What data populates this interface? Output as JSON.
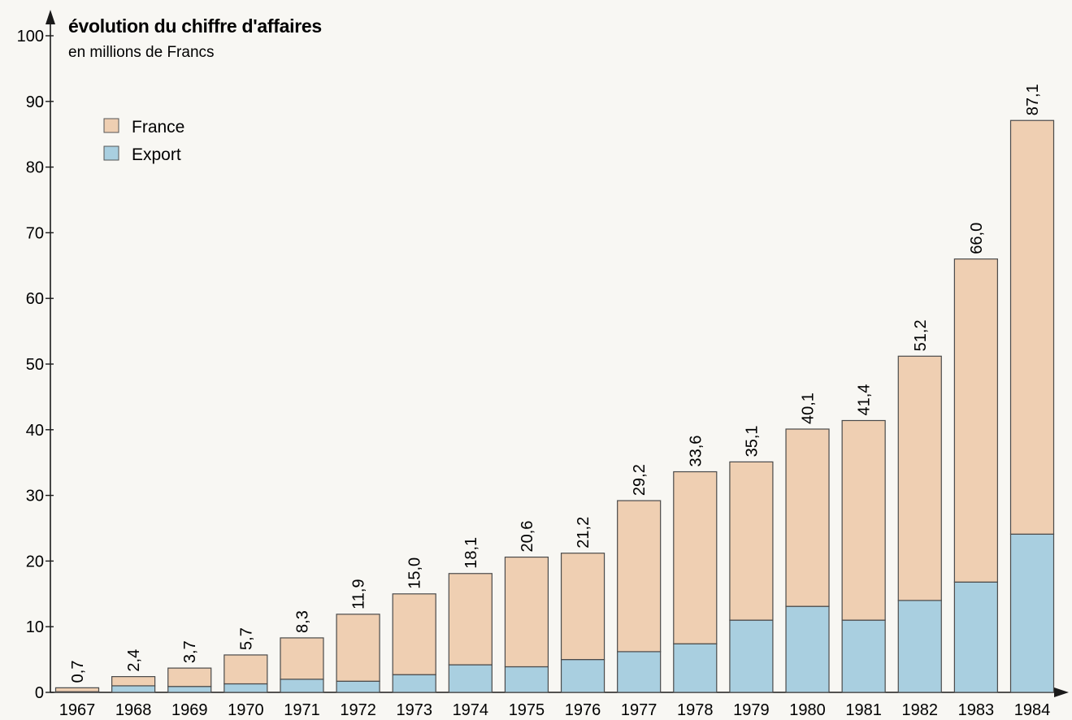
{
  "chart_data": {
    "type": "bar",
    "stacked": true,
    "title": "évolution du chiffre d'affaires",
    "subtitle": "en millions de Francs",
    "xlabel": "",
    "ylabel": "",
    "ylim": [
      0,
      100
    ],
    "y_ticks": [
      "0",
      "10",
      "20",
      "30",
      "40",
      "50",
      "60",
      "70",
      "80",
      "90",
      "100"
    ],
    "grid": false,
    "legend_position": "top-left",
    "categories": [
      "1967",
      "1968",
      "1969",
      "1970",
      "1971",
      "1972",
      "1973",
      "1974",
      "1975",
      "1976",
      "1977",
      "1978",
      "1979",
      "1980",
      "1981",
      "1982",
      "1983",
      "1984"
    ],
    "totals": [
      0.7,
      2.4,
      3.7,
      5.7,
      8.3,
      11.9,
      15.0,
      18.1,
      20.6,
      21.2,
      29.2,
      33.6,
      35.1,
      40.1,
      41.4,
      51.2,
      66.0,
      87.1
    ],
    "total_labels": [
      "0,7",
      "2,4",
      "3,7",
      "5,7",
      "8,3",
      "11,9",
      "15,0",
      "18,1",
      "20,6",
      "21,2",
      "29,2",
      "33,6",
      "35,1",
      "40,1",
      "41,4",
      "51,2",
      "66,0",
      "87,1"
    ],
    "series": [
      {
        "name": "Export",
        "color": "#a9cfe0",
        "values": [
          0.1,
          1.0,
          0.9,
          1.3,
          2.0,
          1.7,
          2.7,
          4.2,
          3.9,
          5.0,
          6.2,
          7.4,
          11.0,
          13.1,
          11.0,
          14.0,
          16.8,
          24.1
        ]
      },
      {
        "name": "France",
        "color": "#efcfb2",
        "values": [
          0.6,
          1.4,
          2.8,
          4.4,
          6.3,
          10.2,
          12.3,
          13.9,
          16.7,
          16.2,
          23.0,
          26.2,
          24.1,
          27.0,
          30.4,
          37.2,
          49.2,
          63.0
        ]
      }
    ],
    "legend": [
      {
        "name": "France",
        "color": "#efcfb2"
      },
      {
        "name": "Export",
        "color": "#a9cfe0"
      }
    ]
  }
}
